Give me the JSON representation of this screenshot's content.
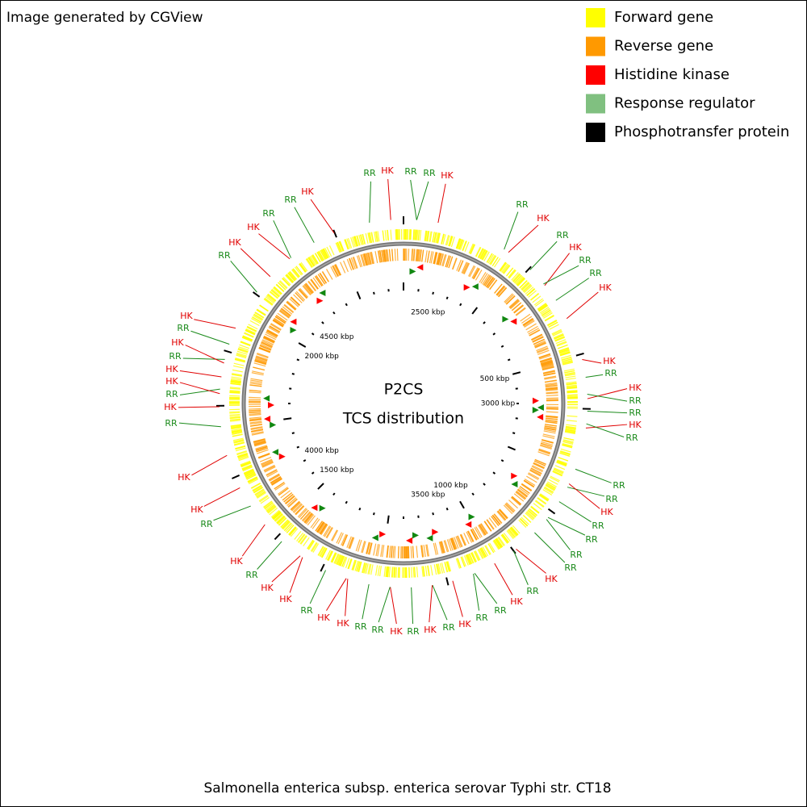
{
  "header": {
    "credit": "Image generated by CGView"
  },
  "legend": [
    {
      "label": "Forward gene",
      "color": "#ffff00"
    },
    {
      "label": "Reverse gene",
      "color": "#ff9900"
    },
    {
      "label": "Histidine kinase",
      "color": "#ff0000"
    },
    {
      "label": "Response regulator",
      "color": "#80c080"
    },
    {
      "label": "Phosphotransfer protein",
      "color": "#000000"
    }
  ],
  "map": {
    "title": "P2CS",
    "subtitle": "TCS distribution",
    "scale_labels": [
      "500 kbp",
      "1000 kbp",
      "1500 kbp",
      "2000 kbp",
      "2500 kbp",
      "3000 kbp",
      "3500 kbp",
      "4000 kbp",
      "4500 kbp"
    ],
    "feature_labels": [
      {
        "text": "RR",
        "color": "#1a8a1a"
      },
      {
        "text": "HK",
        "color": "#e00000"
      },
      {
        "text": "RR",
        "color": "#1a8a1a"
      },
      {
        "text": "RR",
        "color": "#1a8a1a"
      },
      {
        "text": "HK",
        "color": "#e00000"
      },
      {
        "text": "RR",
        "color": "#1a8a1a"
      },
      {
        "text": "HK",
        "color": "#e00000"
      },
      {
        "text": "RR",
        "color": "#1a8a1a"
      },
      {
        "text": "HK",
        "color": "#e00000"
      },
      {
        "text": "RR",
        "color": "#1a8a1a"
      },
      {
        "text": "RR",
        "color": "#1a8a1a"
      },
      {
        "text": "HK",
        "color": "#e00000"
      },
      {
        "text": "HK",
        "color": "#e00000"
      },
      {
        "text": "RR",
        "color": "#1a8a1a"
      },
      {
        "text": "HK",
        "color": "#e00000"
      },
      {
        "text": "RR",
        "color": "#1a8a1a"
      },
      {
        "text": "RR",
        "color": "#1a8a1a"
      },
      {
        "text": "HK",
        "color": "#e00000"
      },
      {
        "text": "RR",
        "color": "#1a8a1a"
      },
      {
        "text": "RR",
        "color": "#1a8a1a"
      },
      {
        "text": "RR",
        "color": "#1a8a1a"
      },
      {
        "text": "HK",
        "color": "#e00000"
      },
      {
        "text": "RR",
        "color": "#1a8a1a"
      },
      {
        "text": "RR",
        "color": "#1a8a1a"
      },
      {
        "text": "RR",
        "color": "#1a8a1a"
      },
      {
        "text": "RR",
        "color": "#1a8a1a"
      },
      {
        "text": "HK",
        "color": "#e00000"
      },
      {
        "text": "RR",
        "color": "#1a8a1a"
      },
      {
        "text": "HK",
        "color": "#e00000"
      },
      {
        "text": "RR",
        "color": "#1a8a1a"
      },
      {
        "text": "RR",
        "color": "#1a8a1a"
      },
      {
        "text": "HK",
        "color": "#e00000"
      },
      {
        "text": "RR",
        "color": "#1a8a1a"
      },
      {
        "text": "HK",
        "color": "#e00000"
      },
      {
        "text": "RR",
        "color": "#1a8a1a"
      },
      {
        "text": "HK",
        "color": "#e00000"
      },
      {
        "text": "RR",
        "color": "#1a8a1a"
      },
      {
        "text": "RR",
        "color": "#1a8a1a"
      },
      {
        "text": "HK",
        "color": "#e00000"
      },
      {
        "text": "HK",
        "color": "#e00000"
      },
      {
        "text": "RR",
        "color": "#1a8a1a"
      },
      {
        "text": "HK",
        "color": "#e00000"
      },
      {
        "text": "HK",
        "color": "#e00000"
      },
      {
        "text": "RR",
        "color": "#1a8a1a"
      },
      {
        "text": "HK",
        "color": "#e00000"
      },
      {
        "text": "RR",
        "color": "#1a8a1a"
      },
      {
        "text": "HK",
        "color": "#e00000"
      },
      {
        "text": "HK",
        "color": "#e00000"
      },
      {
        "text": "RR",
        "color": "#1a8a1a"
      },
      {
        "text": "HK",
        "color": "#e00000"
      },
      {
        "text": "RR",
        "color": "#1a8a1a"
      },
      {
        "text": "HK",
        "color": "#e00000"
      },
      {
        "text": "HK",
        "color": "#e00000"
      },
      {
        "text": "RR",
        "color": "#1a8a1a"
      },
      {
        "text": "HK",
        "color": "#e00000"
      },
      {
        "text": "RR",
        "color": "#1a8a1a"
      },
      {
        "text": "HK",
        "color": "#e00000"
      },
      {
        "text": "RR",
        "color": "#1a8a1a"
      },
      {
        "text": "HK",
        "color": "#e00000"
      },
      {
        "text": "HK",
        "color": "#e00000"
      },
      {
        "text": "RR",
        "color": "#1a8a1a"
      },
      {
        "text": "RR",
        "color": "#1a8a1a"
      },
      {
        "text": "HK",
        "color": "#e00000"
      }
    ]
  },
  "footer": {
    "organism": "Salmonella enterica subsp. enterica serovar Typhi str. CT18"
  }
}
